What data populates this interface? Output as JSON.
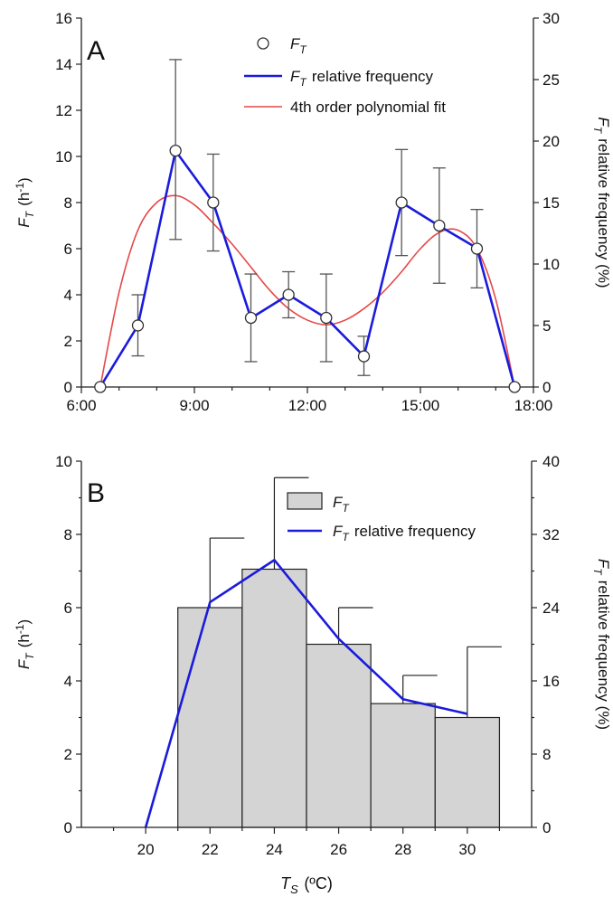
{
  "chart_data": [
    {
      "type": "line",
      "panel_label": "A",
      "xlabel": "",
      "ylabel_left": {
        "sym": "F",
        "sub": "T",
        "unit": " (h",
        "sup": "-1",
        "close": ")"
      },
      "ylabel_right": {
        "sym": "F",
        "sub": "T",
        "rest": " relative frequency (%)"
      },
      "xlim": [
        6.0,
        18.0
      ],
      "xticks": [
        6,
        9,
        12,
        15,
        18
      ],
      "xtick_labels": [
        "6:00",
        "9:00",
        "12:00",
        "15:00",
        "18:00"
      ],
      "ylim": [
        0,
        16
      ],
      "yticks": [
        0,
        2,
        4,
        6,
        8,
        10,
        12,
        14,
        16
      ],
      "y2lim": [
        0,
        30
      ],
      "y2ticks": [
        0,
        5,
        10,
        15,
        20,
        25,
        30
      ],
      "legend": [
        {
          "sym": "F",
          "sub": "T",
          "rest": ""
        },
        {
          "sym": "F",
          "sub": "T",
          "rest": " relative frequency"
        },
        {
          "sym": "",
          "sub": "",
          "rest": "4th order polynomial fit"
        }
      ],
      "legend_position": "top-center",
      "colors": {
        "relfreq": "#1b1bdc",
        "fit": "#e54848",
        "errorbar": "#555555",
        "axis": "#222222"
      },
      "series": [
        {
          "kind": "markers_with_errorbars",
          "x": [
            6.5,
            7.5,
            8.5,
            9.5,
            10.5,
            11.5,
            12.5,
            13.5,
            14.5,
            15.5,
            16.5,
            17.5
          ],
          "y": [
            0,
            2.67,
            10.25,
            8.0,
            3.0,
            4.0,
            3.0,
            1.33,
            8.0,
            7.0,
            6.0,
            0
          ],
          "err_upper": [
            0,
            4.0,
            14.2,
            10.1,
            4.9,
            5.0,
            4.9,
            2.2,
            10.3,
            9.5,
            7.7,
            0
          ],
          "err_lower": [
            0,
            1.35,
            6.4,
            5.9,
            1.1,
            3.0,
            1.1,
            0.5,
            5.7,
            4.5,
            4.3,
            0
          ]
        },
        {
          "kind": "relative_frequency",
          "x": [
            6.5,
            7.5,
            8.5,
            9.5,
            10.5,
            11.5,
            12.5,
            13.5,
            14.5,
            15.5,
            16.5,
            17.5
          ],
          "y_percent": [
            0,
            5.0,
            19.2,
            15.0,
            5.6,
            7.5,
            5.6,
            2.5,
            15.0,
            13.1,
            11.3,
            0
          ]
        },
        {
          "kind": "polynomial_fit",
          "x": [
            6.5,
            7.0,
            7.5,
            8.0,
            8.5,
            9.0,
            9.5,
            10.0,
            10.5,
            11.0,
            11.5,
            12.0,
            12.5,
            13.0,
            13.5,
            14.0,
            14.5,
            15.0,
            15.5,
            16.0,
            16.5,
            17.0,
            17.5
          ],
          "y": [
            0.0,
            4.1,
            6.8,
            8.0,
            8.3,
            7.9,
            7.1,
            6.2,
            5.2,
            4.2,
            3.4,
            2.9,
            2.7,
            2.9,
            3.4,
            4.1,
            5.0,
            6.0,
            6.7,
            6.8,
            6.0,
            3.8,
            0.0
          ]
        }
      ]
    },
    {
      "type": "bar",
      "panel_label": "B",
      "xlabel": {
        "sym": "T",
        "sub": "S",
        "rest": " (ºC)"
      },
      "ylabel_left": {
        "sym": "F",
        "sub": "T",
        "unit": " (h",
        "sup": "-1",
        "close": ")"
      },
      "ylabel_right": {
        "sym": "F",
        "sub": "T",
        "rest": " relative frequency (%)"
      },
      "xlim": [
        18,
        32
      ],
      "xticks": [
        20,
        22,
        24,
        26,
        28,
        30
      ],
      "xtick_labels": [
        "20",
        "22",
        "24",
        "26",
        "28",
        "30"
      ],
      "ylim": [
        0,
        10
      ],
      "yticks": [
        0,
        2,
        4,
        6,
        8,
        10
      ],
      "y2lim": [
        0,
        40
      ],
      "y2ticks": [
        0,
        8,
        16,
        24,
        32,
        40
      ],
      "legend": [
        {
          "sym": "F",
          "sub": "T",
          "rest": ""
        },
        {
          "sym": "F",
          "sub": "T",
          "rest": " relative frequency"
        }
      ],
      "legend_position": "top-right",
      "colors": {
        "bar_fill": "#d4d4d4",
        "bar_edge": "#222222",
        "relfreq": "#1b1bdc",
        "errorbar": "#222222"
      },
      "bar_width": 2,
      "categories": [
        22,
        24,
        26,
        28,
        30
      ],
      "values": [
        6.0,
        7.05,
        5.0,
        3.38,
        3.0
      ],
      "err_upper": [
        7.9,
        9.55,
        6.0,
        4.15,
        4.93
      ],
      "relative_frequency": {
        "x": [
          20,
          22,
          24,
          26,
          28,
          30
        ],
        "y_percent": [
          0,
          24.6,
          29.2,
          20.6,
          14.0,
          12.4
        ]
      }
    }
  ]
}
